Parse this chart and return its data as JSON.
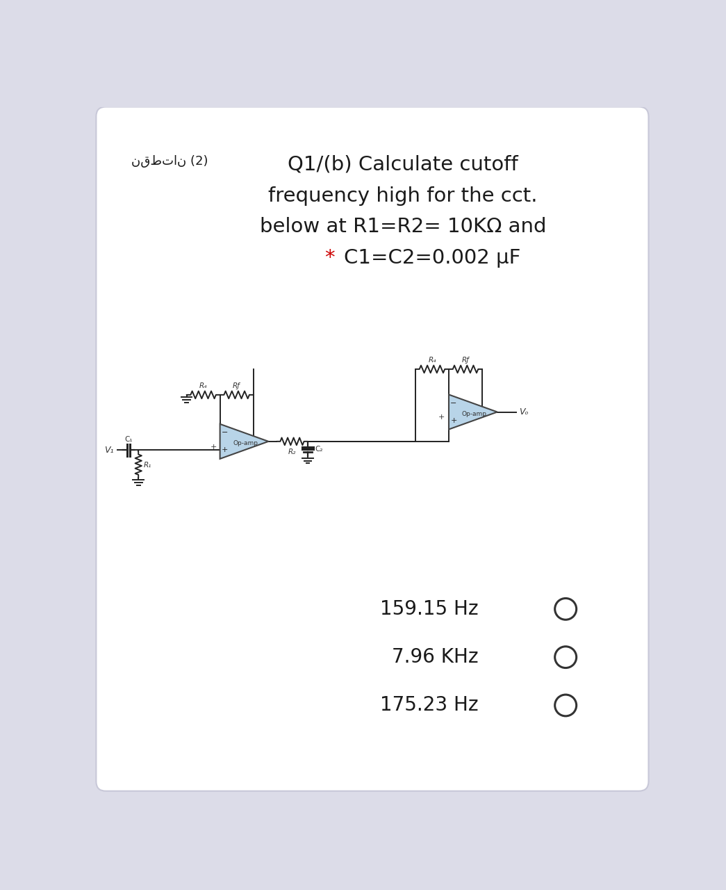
{
  "title_arabic": "نقطتان (2)",
  "title_main_line1": "Q1/(b) Calculate cutoff",
  "title_main_line2": "frequency high for the cct.",
  "title_main_line3": "below at R1=R2= 10KΩ and",
  "title_star": "*",
  "title_main_line4": " C1=C2=0.002 μF",
  "title_star_color": "#cc0000",
  "options": [
    "159.15 Hz",
    "7.96 KHz",
    "175.23 Hz"
  ],
  "card_bg": "#ffffff",
  "outer_bg": "#dcdce8",
  "text_color": "#1a1a1a",
  "opamp_fill": "#b8d4e8",
  "opamp_stroke": "#444444",
  "wire_color": "#222222",
  "component_color": "#222222",
  "label_color": "#333333",
  "title_fontsize": 21,
  "arabic_fontsize": 13,
  "option_fontsize": 20,
  "circuit_lw": 1.4
}
